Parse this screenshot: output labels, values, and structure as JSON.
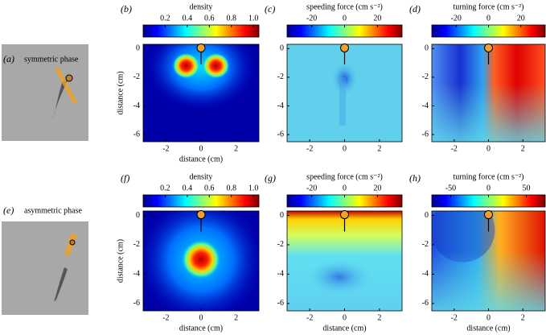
{
  "figure": {
    "rows": [
      {
        "photo_label": "(a)",
        "phase": "symmetric phase"
      },
      {
        "photo_label": "(e)",
        "phase": "asymmetric phase"
      }
    ],
    "panels": [
      {
        "label": "(b)",
        "colorbar_title": "density",
        "clim": [
          0,
          1.05
        ],
        "cticks": [
          0.2,
          0.4,
          0.6,
          0.8,
          {
            "value": 1,
            "label": "1.0"
          }
        ],
        "xlabel": "distance (cm)",
        "ylabel": "distance (cm)",
        "xlim": [
          -3.3,
          3.3
        ],
        "ylim": [
          -6.5,
          0.3
        ],
        "xticks": [
          -2,
          0,
          2
        ],
        "yticks": [
          0,
          -2,
          -4,
          -6
        ]
      },
      {
        "label": "(c)",
        "colorbar_title": "speeding force (cm s⁻²)",
        "clim": [
          -35,
          35
        ],
        "cticks": [
          -20,
          0,
          20
        ],
        "xlim": [
          -3.3,
          3.3
        ],
        "ylim": [
          -6.5,
          0.3
        ],
        "xticks": [
          -2,
          0,
          2
        ],
        "yticks": [
          0,
          -2,
          -4,
          -6
        ]
      },
      {
        "label": "(d)",
        "colorbar_title": "turning force (cm s⁻²)",
        "clim": [
          -35,
          35
        ],
        "cticks": [
          -20,
          0,
          20
        ],
        "xlim": [
          -3.3,
          3.3
        ],
        "ylim": [
          -6.5,
          0.3
        ],
        "xticks": [
          -2,
          0,
          2
        ],
        "yticks": [
          0,
          -2,
          -4,
          -6
        ]
      },
      {
        "label": "(f)",
        "colorbar_title": "density",
        "clim": [
          0,
          1.05
        ],
        "cticks": [
          0.2,
          0.4,
          0.6,
          0.8,
          {
            "value": 1,
            "label": "1.0"
          }
        ],
        "xlabel": "distance (cm)",
        "ylabel": "distance (cm)",
        "xlim": [
          -3.3,
          3.3
        ],
        "ylim": [
          -6.5,
          0.3
        ],
        "xticks": [
          -2,
          0,
          2
        ],
        "yticks": [
          0,
          -2,
          -4,
          -6
        ]
      },
      {
        "label": "(g)",
        "colorbar_title": "speeding force (cm s⁻²)",
        "clim": [
          -35,
          35
        ],
        "cticks": [
          -20,
          0,
          20
        ],
        "xlabel": "distance (cm)",
        "xlim": [
          -3.3,
          3.3
        ],
        "ylim": [
          -6.5,
          0.3
        ],
        "xticks": [
          -2,
          0,
          2
        ],
        "yticks": [
          0,
          -2,
          -4,
          -6
        ]
      },
      {
        "label": "(h)",
        "colorbar_title": "turning force (cm s⁻²)",
        "clim": [
          -75,
          75
        ],
        "cticks": [
          -50,
          0,
          50
        ],
        "xlabel": "distance (cm)",
        "xlim": [
          -3.3,
          3.3
        ],
        "ylim": [
          -6.5,
          0.3
        ],
        "xticks": [
          -2,
          0,
          2
        ],
        "yticks": [
          0,
          -2,
          -4,
          -6
        ]
      }
    ]
  }
}
